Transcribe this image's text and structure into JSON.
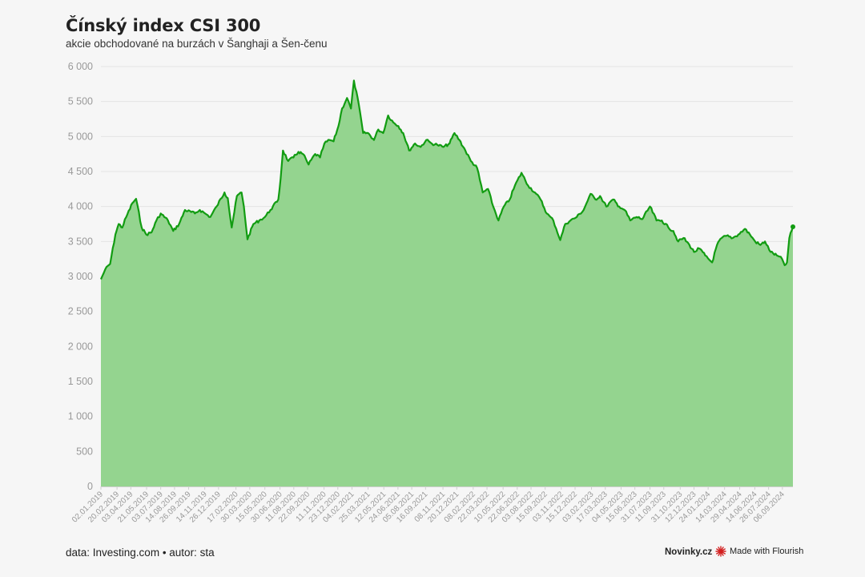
{
  "header": {
    "title": "Čínský index CSI 300",
    "subtitle": "akcie obchodované na burzách v Šanghaji a Šen-čenu"
  },
  "footer": {
    "source": "data: Investing.com • autor: sta",
    "brand": "Novinky.cz",
    "flourish_label": "Made with Flourish",
    "flourish_icon": "flourish-logo-icon"
  },
  "colors": {
    "line": "#129c12",
    "area": "#94d48f",
    "grid": "#e4e4e4",
    "flourish_icon": "#d21e1e"
  },
  "chart_data": {
    "type": "area",
    "title": "Čínský index CSI 300",
    "subtitle": "akcie obchodované na burzách v Šanghaji a Šen-čenu",
    "xlabel": "",
    "ylabel": "",
    "ylim": [
      0,
      6000
    ],
    "xlim": [
      "2019-01-02",
      "2024-10-08"
    ],
    "grid": true,
    "legend": "none",
    "y_ticks": [
      0,
      500,
      1000,
      1500,
      2000,
      2500,
      3000,
      3500,
      4000,
      4500,
      5000,
      5500,
      6000
    ],
    "y_tick_labels": [
      "0",
      "500",
      "1 000",
      "1 500",
      "2 000",
      "2 500",
      "3 000",
      "3 500",
      "4 000",
      "4 500",
      "5 000",
      "5 500",
      "6 000"
    ],
    "x_tick_labels": [
      "02.01.2019",
      "20.02.2019",
      "03.04.2019",
      "21.05.2019",
      "03.07.2019",
      "14.08.2019",
      "26.09.2019",
      "14.11.2019",
      "26.12.2019",
      "17.02.2020",
      "30.03.2020",
      "15.05.2020",
      "30.06.2020",
      "11.08.2020",
      "22.09.2020",
      "11.11.2020",
      "23.12.2020",
      "04.02.2021",
      "25.03.2021",
      "12.05.2021",
      "24.06.2021",
      "05.08.2021",
      "16.09.2021",
      "08.11.2021",
      "20.12.2021",
      "08.02.2022",
      "22.03.2022",
      "10.05.2022",
      "22.06.2022",
      "03.08.2022",
      "15.09.2022",
      "03.11.2022",
      "15.12.2022",
      "03.02.2023",
      "17.03.2023",
      "04.05.2023",
      "15.06.2023",
      "31.07.2023",
      "11.09.2023",
      "31.10.2023",
      "12.12.2023",
      "24.01.2024",
      "14.03.2024",
      "29.04.2024",
      "14.06.2024",
      "26.07.2024",
      "06.09.2024"
    ],
    "series": [
      {
        "values": [
          [
            "2019-01-02",
            2960
          ],
          [
            "2019-01-15",
            3100
          ],
          [
            "2019-01-30",
            3180
          ],
          [
            "2019-02-15",
            3600
          ],
          [
            "2019-02-25",
            3750
          ],
          [
            "2019-03-08",
            3700
          ],
          [
            "2019-03-20",
            3850
          ],
          [
            "2019-04-08",
            4050
          ],
          [
            "2019-04-19",
            4110
          ],
          [
            "2019-05-06",
            3700
          ],
          [
            "2019-05-20",
            3600
          ],
          [
            "2019-06-05",
            3630
          ],
          [
            "2019-06-20",
            3800
          ],
          [
            "2019-07-03",
            3900
          ],
          [
            "2019-07-25",
            3800
          ],
          [
            "2019-08-10",
            3650
          ],
          [
            "2019-08-28",
            3750
          ],
          [
            "2019-09-15",
            3950
          ],
          [
            "2019-10-15",
            3900
          ],
          [
            "2019-10-30",
            3950
          ],
          [
            "2019-11-15",
            3900
          ],
          [
            "2019-12-01",
            3850
          ],
          [
            "2019-12-20",
            4000
          ],
          [
            "2020-01-13",
            4200
          ],
          [
            "2020-01-23",
            4120
          ],
          [
            "2020-02-04",
            3700
          ],
          [
            "2020-02-20",
            4150
          ],
          [
            "2020-03-05",
            4200
          ],
          [
            "2020-03-12",
            4000
          ],
          [
            "2020-03-23",
            3530
          ],
          [
            "2020-04-10",
            3750
          ],
          [
            "2020-04-28",
            3800
          ],
          [
            "2020-05-15",
            3850
          ],
          [
            "2020-06-01",
            3950
          ],
          [
            "2020-06-25",
            4100
          ],
          [
            "2020-07-02",
            4400
          ],
          [
            "2020-07-09",
            4800
          ],
          [
            "2020-07-25",
            4650
          ],
          [
            "2020-08-10",
            4700
          ],
          [
            "2020-08-25",
            4780
          ],
          [
            "2020-09-08",
            4750
          ],
          [
            "2020-09-25",
            4600
          ],
          [
            "2020-10-15",
            4750
          ],
          [
            "2020-10-30",
            4700
          ],
          [
            "2020-11-12",
            4900
          ],
          [
            "2020-11-28",
            4950
          ],
          [
            "2020-12-10",
            4930
          ],
          [
            "2020-12-25",
            5150
          ],
          [
            "2021-01-05",
            5400
          ],
          [
            "2021-01-20",
            5550
          ],
          [
            "2021-02-01",
            5400
          ],
          [
            "2021-02-10",
            5800
          ],
          [
            "2021-02-25",
            5450
          ],
          [
            "2021-03-10",
            5050
          ],
          [
            "2021-03-25",
            5050
          ],
          [
            "2021-04-12",
            4950
          ],
          [
            "2021-04-25",
            5100
          ],
          [
            "2021-05-10",
            5050
          ],
          [
            "2021-05-25",
            5300
          ],
          [
            "2021-06-10",
            5200
          ],
          [
            "2021-06-25",
            5150
          ],
          [
            "2021-07-10",
            5050
          ],
          [
            "2021-07-28",
            4800
          ],
          [
            "2021-08-15",
            4900
          ],
          [
            "2021-09-01",
            4850
          ],
          [
            "2021-09-18",
            4950
          ],
          [
            "2021-10-05",
            4900
          ],
          [
            "2021-10-22",
            4880
          ],
          [
            "2021-11-10",
            4850
          ],
          [
            "2021-11-28",
            4900
          ],
          [
            "2021-12-13",
            5050
          ],
          [
            "2021-12-28",
            4950
          ],
          [
            "2022-01-15",
            4800
          ],
          [
            "2022-02-01",
            4650
          ],
          [
            "2022-02-20",
            4550
          ],
          [
            "2022-03-09",
            4200
          ],
          [
            "2022-03-25",
            4250
          ],
          [
            "2022-04-10",
            4000
          ],
          [
            "2022-04-26",
            3800
          ],
          [
            "2022-05-12",
            4000
          ],
          [
            "2022-05-30",
            4100
          ],
          [
            "2022-06-15",
            4300
          ],
          [
            "2022-07-05",
            4480
          ],
          [
            "2022-07-25",
            4300
          ],
          [
            "2022-08-15",
            4200
          ],
          [
            "2022-09-01",
            4100
          ],
          [
            "2022-09-20",
            3900
          ],
          [
            "2022-10-10",
            3800
          ],
          [
            "2022-10-31",
            3520
          ],
          [
            "2022-11-15",
            3750
          ],
          [
            "2022-12-01",
            3800
          ],
          [
            "2022-12-20",
            3850
          ],
          [
            "2023-01-10",
            3950
          ],
          [
            "2023-01-31",
            4180
          ],
          [
            "2023-02-15",
            4100
          ],
          [
            "2023-03-01",
            4150
          ],
          [
            "2023-03-20",
            4000
          ],
          [
            "2023-04-10",
            4100
          ],
          [
            "2023-04-28",
            4000
          ],
          [
            "2023-05-15",
            3950
          ],
          [
            "2023-06-01",
            3800
          ],
          [
            "2023-06-20",
            3850
          ],
          [
            "2023-07-08",
            3820
          ],
          [
            "2023-07-31",
            4000
          ],
          [
            "2023-08-20",
            3800
          ],
          [
            "2023-09-05",
            3800
          ],
          [
            "2023-09-25",
            3700
          ],
          [
            "2023-10-10",
            3650
          ],
          [
            "2023-10-25",
            3500
          ],
          [
            "2023-11-10",
            3550
          ],
          [
            "2023-11-28",
            3450
          ],
          [
            "2023-12-12",
            3350
          ],
          [
            "2023-12-28",
            3400
          ],
          [
            "2024-01-15",
            3300
          ],
          [
            "2024-02-05",
            3200
          ],
          [
            "2024-02-20",
            3450
          ],
          [
            "2024-03-05",
            3550
          ],
          [
            "2024-03-20",
            3580
          ],
          [
            "2024-04-08",
            3550
          ],
          [
            "2024-04-25",
            3600
          ],
          [
            "2024-05-15",
            3680
          ],
          [
            "2024-05-30",
            3600
          ],
          [
            "2024-06-15",
            3500
          ],
          [
            "2024-07-01",
            3450
          ],
          [
            "2024-07-15",
            3500
          ],
          [
            "2024-08-01",
            3350
          ],
          [
            "2024-08-20",
            3300
          ],
          [
            "2024-09-05",
            3250
          ],
          [
            "2024-09-13",
            3160
          ],
          [
            "2024-09-20",
            3200
          ],
          [
            "2024-09-27",
            3550
          ],
          [
            "2024-10-08",
            3710
          ]
        ]
      }
    ]
  }
}
